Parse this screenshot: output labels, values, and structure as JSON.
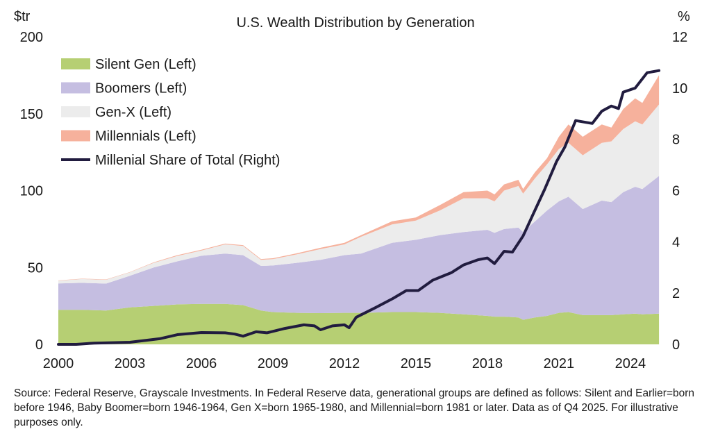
{
  "chart_data": {
    "type": "area",
    "stacked": true,
    "title": "U.S. Wealth Distribution by Generation",
    "y_left_unit": "$tr",
    "y_right_unit": "%",
    "ylim_left": [
      0,
      200
    ],
    "ylim_right": [
      0,
      12
    ],
    "xlim": [
      2000,
      2025.25
    ],
    "x_ticks": [
      "2000",
      "2003",
      "2006",
      "2009",
      "2012",
      "2015",
      "2018",
      "2021",
      "2024"
    ],
    "y_left_ticks": [
      "0",
      "50",
      "100",
      "150",
      "200"
    ],
    "y_right_ticks": [
      "0",
      "2",
      "4",
      "6",
      "8",
      "10",
      "12"
    ],
    "grid": false,
    "legend_position": "top-left",
    "x": [
      2000,
      2001,
      2002,
      2003,
      2004,
      2005,
      2006,
      2007,
      2007.75,
      2008.5,
      2009,
      2010,
      2011,
      2012,
      2012.7,
      2014,
      2015,
      2016,
      2017,
      2018,
      2018.3,
      2018.7,
      2019.3,
      2019.5,
      2020,
      2020.5,
      2021,
      2021.4,
      2022,
      2022.8,
      2023.2,
      2023.7,
      2024.2,
      2024.5,
      2025.2
    ],
    "series": [
      {
        "name": "Silent Gen (Left)",
        "axis": "left",
        "color": "#b6cf73",
        "values": [
          22.5,
          22.5,
          22,
          24,
          25,
          26,
          26.3,
          26.3,
          25.5,
          22,
          21,
          20.5,
          20.3,
          20.5,
          20.5,
          21,
          21,
          20.5,
          19.5,
          18.5,
          18,
          18,
          17.5,
          16,
          17.5,
          18.5,
          20.5,
          21,
          19,
          19,
          19,
          19.5,
          20,
          19.5,
          20
        ]
      },
      {
        "name": "Boomers (Left)",
        "axis": "left",
        "color": "#c5bee1",
        "values": [
          17.1,
          17.5,
          17.5,
          20.6,
          25,
          28,
          31.3,
          32.7,
          32.5,
          29,
          30.3,
          32.5,
          34.7,
          37.5,
          38.5,
          45,
          47,
          50.5,
          53.5,
          56,
          54.5,
          57,
          58.5,
          57,
          62.5,
          68.5,
          72.5,
          75,
          69,
          74.5,
          73.5,
          79.5,
          82.5,
          81.5,
          89.5
        ]
      },
      {
        "name": "Gen-X (Left)",
        "axis": "left",
        "color": "#ececec",
        "values": [
          1.8,
          2.5,
          2.5,
          2.2,
          3,
          3.5,
          3.4,
          6,
          6,
          4,
          4.1,
          5.5,
          7,
          7,
          11,
          12,
          12.5,
          16,
          22,
          20.5,
          20.5,
          25,
          27,
          25,
          28,
          30,
          34,
          35,
          35,
          37.5,
          39.5,
          41,
          42.5,
          42,
          46.5
        ]
      },
      {
        "name": "Millennials (Left)",
        "axis": "left",
        "color": "#f6b19c",
        "values": [
          0.2,
          0.2,
          0.2,
          0.2,
          0.3,
          0.5,
          0.5,
          0.5,
          0.5,
          0.5,
          0.6,
          0.7,
          0.8,
          1,
          1,
          2,
          2,
          3.5,
          4,
          5,
          4.5,
          4,
          4,
          3,
          4,
          4,
          8,
          12,
          12,
          12,
          9,
          13,
          15,
          14,
          19
        ]
      },
      {
        "name": "Millenial Share of Total (Right)",
        "axis": "right",
        "type": "line",
        "color": "#211c3f",
        "x": [
          2000,
          2000.75,
          2001.5,
          2003,
          2004.25,
          2005,
          2006,
          2007,
          2007.4,
          2007.75,
          2008.3,
          2008.75,
          2009.5,
          2010.3,
          2010.75,
          2011,
          2011.5,
          2012,
          2012.2,
          2012.5,
          2013.3,
          2014.04,
          2014.6,
          2015.1,
          2015.7,
          2016.5,
          2017,
          2017.6,
          2018,
          2018.3,
          2018.7,
          2019.05,
          2019.5,
          2019.9,
          2020.4,
          2020.9,
          2021.25,
          2021.7,
          2022.4,
          2022.8,
          2023.2,
          2023.5,
          2023.7,
          2024.2,
          2024.7,
          2025.2
        ],
        "values": [
          0,
          0,
          0.05,
          0.08,
          0.22,
          0.38,
          0.46,
          0.45,
          0.4,
          0.32,
          0.49,
          0.45,
          0.62,
          0.76,
          0.72,
          0.57,
          0.72,
          0.76,
          0.65,
          1.06,
          1.43,
          1.79,
          2.1,
          2.1,
          2.5,
          2.8,
          3.1,
          3.3,
          3.37,
          3.15,
          3.63,
          3.6,
          4.23,
          5.04,
          6.04,
          7.13,
          7.7,
          8.73,
          8.62,
          9.1,
          9.3,
          9.2,
          9.84,
          10.0,
          10.6,
          10.68
        ]
      }
    ]
  },
  "source": "Source: Federal Reserve, Grayscale Investments. In Federal Reserve data, generational groups are defined as follows: Silent and Earlier=born before 1946, Baby Boomer=born 1946-1964, Gen X=born 1965-1980, and Millennial=born 1981 or later. Data as of Q4 2025. For illustrative purposes only."
}
